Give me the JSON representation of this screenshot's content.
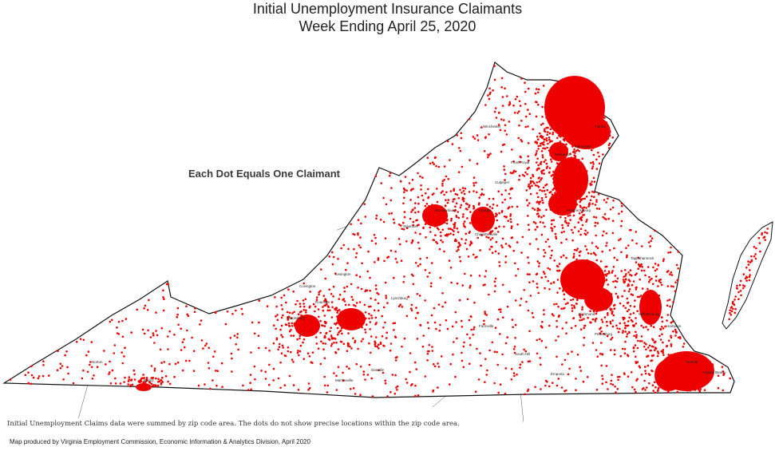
{
  "header": {
    "title": "Initial Unemployment Insurance Claimants",
    "subtitle": "Week Ending April 25, 2020"
  },
  "legend": {
    "note": "Each Dot Equals One Claimant"
  },
  "footer": {
    "note": "Initial Unemployment Claims data were summed by zip code area. The dots do not show precise locations within the zip code area.",
    "credit": "Map produced by Virginia Employment Commission, Economic Information & Analytics Division,  April 2020"
  },
  "map": {
    "region": "Virginia",
    "dot_color": "#ee0000",
    "boundary_color": "#111111",
    "county_line_color": "#555555",
    "city_labels": [
      "Winchester",
      "Front Royal",
      "Warrenton",
      "Manassas",
      "Fairfax",
      "Harrisonburg",
      "Staunton",
      "Charlottesville",
      "Fredericksburg",
      "Richmond",
      "Lynchburg",
      "Roanoke",
      "Blacksburg",
      "Danville",
      "Martinsville",
      "Bristol",
      "Norton",
      "Petersburg",
      "Norfolk",
      "Virginia Beach",
      "Hampton",
      "Williamsburg",
      "Emporia",
      "South Hill",
      "Farmville",
      "Covington",
      "Lexington",
      "Culpeper",
      "Orange",
      "Tappahannock"
    ]
  }
}
